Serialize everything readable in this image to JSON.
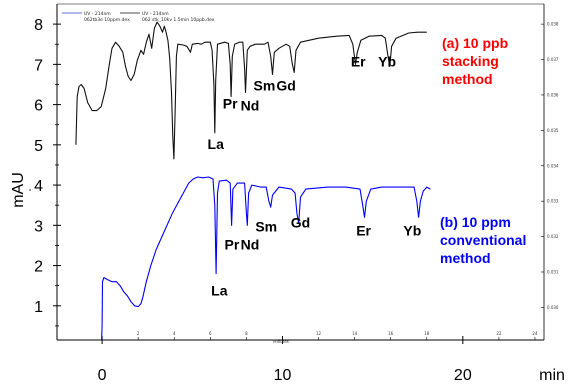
{
  "legend": {
    "entries": [
      {
        "label": "UV - 214nm",
        "file": "062tb3e 10ppm.dex",
        "color": "#2b3bd0"
      },
      {
        "label": "UV - 214nm",
        "file": "062 stk_10kv 1.5min 10ppb.dex",
        "color": "#111111"
      }
    ]
  },
  "annotations": {
    "a_lines": [
      "(a) 10 ppb",
      "stacking",
      "method"
    ],
    "a_color": "#ff0000",
    "b_lines": [
      "(b) 10 ppm",
      "conventional",
      "method"
    ],
    "b_color": "#0000ff"
  },
  "chart_data": {
    "type": "line",
    "xlabel": "min",
    "x_minor_label": "Minutes",
    "ylabel": "mAU",
    "xlim": [
      -2.5,
      24.5
    ],
    "ylim": [
      0.15,
      8.5
    ],
    "x_ticks": [
      0,
      10,
      20
    ],
    "y_ticks": [
      1,
      2,
      3,
      4,
      5,
      6,
      7,
      8
    ],
    "x_minor_ticks": [
      2,
      4,
      6,
      8,
      12,
      14,
      16,
      18,
      22,
      24
    ],
    "right_axis_ticks": [
      {
        "y": 8.0,
        "label": "0.038"
      },
      {
        "y": 7.12,
        "label": "0.037"
      },
      {
        "y": 6.24,
        "label": "0.036"
      },
      {
        "y": 5.36,
        "label": "0.035"
      },
      {
        "y": 4.48,
        "label": "0.034"
      },
      {
        "y": 3.6,
        "label": "0.033"
      },
      {
        "y": 2.72,
        "label": "0.032"
      },
      {
        "y": 1.84,
        "label": "0.031"
      },
      {
        "y": 0.96,
        "label": "0.030"
      }
    ],
    "peak_labels": [
      {
        "text": "La",
        "x": 6.3,
        "y": 4.9
      },
      {
        "text": "Pr",
        "x": 7.1,
        "y": 5.9
      },
      {
        "text": "Nd",
        "x": 8.2,
        "y": 5.85
      },
      {
        "text": "Sm",
        "x": 9.0,
        "y": 6.35
      },
      {
        "text": "Gd",
        "x": 10.2,
        "y": 6.35
      },
      {
        "text": "Er",
        "x": 14.2,
        "y": 6.95
      },
      {
        "text": "Yb",
        "x": 15.8,
        "y": 6.95
      },
      {
        "text": "La",
        "x": 6.5,
        "y": 1.25
      },
      {
        "text": "Pr",
        "x": 7.2,
        "y": 2.4
      },
      {
        "text": "Nd",
        "x": 8.2,
        "y": 2.4
      },
      {
        "text": "Sm",
        "x": 9.1,
        "y": 2.85
      },
      {
        "text": "Gd",
        "x": 11.0,
        "y": 2.95
      },
      {
        "text": "Er",
        "x": 14.5,
        "y": 2.75
      },
      {
        "text": "Yb",
        "x": 17.2,
        "y": 2.75
      }
    ],
    "series": [
      {
        "color": "#111111",
        "points": [
          [
            -1.45,
            5.0
          ],
          [
            -1.38,
            6.2
          ],
          [
            -1.28,
            6.45
          ],
          [
            -1.15,
            6.5
          ],
          [
            -1.0,
            6.4
          ],
          [
            -0.8,
            6.05
          ],
          [
            -0.55,
            5.85
          ],
          [
            -0.3,
            5.85
          ],
          [
            -0.05,
            5.95
          ],
          [
            0.2,
            6.4
          ],
          [
            0.4,
            7.0
          ],
          [
            0.55,
            7.4
          ],
          [
            0.75,
            7.55
          ],
          [
            0.95,
            7.45
          ],
          [
            1.15,
            7.3
          ],
          [
            1.3,
            6.95
          ],
          [
            1.45,
            6.7
          ],
          [
            1.6,
            6.6
          ],
          [
            1.78,
            6.75
          ],
          [
            1.95,
            7.1
          ],
          [
            2.15,
            7.35
          ],
          [
            2.3,
            7.25
          ],
          [
            2.45,
            7.55
          ],
          [
            2.6,
            7.75
          ],
          [
            2.75,
            7.4
          ],
          [
            2.9,
            7.9
          ],
          [
            3.05,
            8.05
          ],
          [
            3.2,
            7.95
          ],
          [
            3.35,
            7.8
          ],
          [
            3.45,
            7.95
          ],
          [
            3.55,
            7.8
          ],
          [
            3.65,
            7.6
          ],
          [
            3.75,
            7.15
          ],
          [
            3.85,
            6.3
          ],
          [
            3.92,
            5.2
          ],
          [
            3.98,
            4.65
          ],
          [
            4.05,
            5.8
          ],
          [
            4.12,
            7.2
          ],
          [
            4.2,
            7.5
          ],
          [
            4.5,
            7.48
          ],
          [
            4.7,
            7.45
          ],
          [
            4.9,
            7.3
          ],
          [
            5.0,
            7.5
          ],
          [
            5.3,
            7.52
          ],
          [
            5.5,
            7.5
          ],
          [
            5.7,
            7.55
          ],
          [
            6.0,
            7.55
          ],
          [
            6.1,
            7.35
          ],
          [
            6.2,
            6.5
          ],
          [
            6.25,
            5.3
          ],
          [
            6.3,
            6.6
          ],
          [
            6.4,
            7.5
          ],
          [
            6.8,
            7.55
          ],
          [
            7.0,
            7.52
          ],
          [
            7.1,
            7.0
          ],
          [
            7.15,
            6.2
          ],
          [
            7.22,
            7.2
          ],
          [
            7.35,
            7.5
          ],
          [
            7.6,
            7.55
          ],
          [
            7.8,
            7.55
          ],
          [
            7.9,
            6.9
          ],
          [
            7.95,
            6.3
          ],
          [
            8.05,
            7.35
          ],
          [
            8.2,
            7.45
          ],
          [
            8.5,
            7.5
          ],
          [
            9.0,
            7.5
          ],
          [
            9.2,
            7.55
          ],
          [
            9.35,
            7.2
          ],
          [
            9.45,
            6.75
          ],
          [
            9.55,
            7.3
          ],
          [
            9.8,
            7.4
          ],
          [
            10.2,
            7.5
          ],
          [
            10.4,
            7.45
          ],
          [
            10.55,
            7.0
          ],
          [
            10.65,
            6.8
          ],
          [
            10.75,
            7.35
          ],
          [
            11.0,
            7.55
          ],
          [
            12.0,
            7.65
          ],
          [
            13.0,
            7.7
          ],
          [
            13.7,
            7.72
          ],
          [
            13.9,
            7.5
          ],
          [
            14.05,
            7.0
          ],
          [
            14.15,
            7.3
          ],
          [
            14.35,
            7.6
          ],
          [
            14.8,
            7.7
          ],
          [
            15.5,
            7.72
          ],
          [
            15.7,
            7.65
          ],
          [
            15.85,
            7.2
          ],
          [
            15.95,
            6.95
          ],
          [
            16.05,
            7.45
          ],
          [
            16.3,
            7.65
          ],
          [
            17.0,
            7.78
          ],
          [
            17.5,
            7.8
          ],
          [
            18.0,
            7.8
          ]
        ]
      },
      {
        "color": "#0000ff",
        "points": [
          [
            -0.03,
            0.15
          ],
          [
            0.0,
            0.5
          ],
          [
            0.02,
            1.6
          ],
          [
            0.1,
            1.7
          ],
          [
            0.3,
            1.65
          ],
          [
            0.55,
            1.6
          ],
          [
            0.8,
            1.6
          ],
          [
            1.0,
            1.5
          ],
          [
            1.2,
            1.35
          ],
          [
            1.4,
            1.25
          ],
          [
            1.6,
            1.1
          ],
          [
            1.8,
            1.0
          ],
          [
            2.0,
            0.98
          ],
          [
            2.15,
            1.05
          ],
          [
            2.25,
            1.2
          ],
          [
            2.45,
            1.6
          ],
          [
            2.7,
            2.0
          ],
          [
            3.0,
            2.4
          ],
          [
            3.3,
            2.7
          ],
          [
            3.6,
            3.0
          ],
          [
            3.9,
            3.3
          ],
          [
            4.2,
            3.55
          ],
          [
            4.5,
            3.8
          ],
          [
            4.8,
            4.05
          ],
          [
            5.05,
            4.15
          ],
          [
            5.3,
            4.2
          ],
          [
            5.6,
            4.18
          ],
          [
            5.9,
            4.2
          ],
          [
            6.15,
            4.15
          ],
          [
            6.25,
            3.5
          ],
          [
            6.32,
            1.8
          ],
          [
            6.4,
            3.8
          ],
          [
            6.5,
            4.1
          ],
          [
            6.9,
            4.12
          ],
          [
            7.1,
            4.05
          ],
          [
            7.18,
            3.0
          ],
          [
            7.25,
            3.9
          ],
          [
            7.5,
            4.05
          ],
          [
            7.9,
            4.05
          ],
          [
            8.0,
            3.3
          ],
          [
            8.05,
            3.0
          ],
          [
            8.12,
            3.8
          ],
          [
            8.3,
            4.0
          ],
          [
            8.8,
            3.95
          ],
          [
            9.1,
            3.95
          ],
          [
            9.25,
            3.6
          ],
          [
            9.35,
            3.45
          ],
          [
            9.45,
            3.75
          ],
          [
            9.8,
            3.95
          ],
          [
            10.5,
            3.9
          ],
          [
            10.7,
            3.8
          ],
          [
            10.8,
            3.3
          ],
          [
            10.9,
            3.05
          ],
          [
            11.0,
            3.7
          ],
          [
            11.3,
            3.9
          ],
          [
            12.5,
            3.95
          ],
          [
            13.5,
            3.95
          ],
          [
            14.3,
            3.9
          ],
          [
            14.45,
            3.5
          ],
          [
            14.55,
            3.2
          ],
          [
            14.65,
            3.6
          ],
          [
            14.9,
            3.9
          ],
          [
            15.5,
            3.95
          ],
          [
            16.5,
            3.95
          ],
          [
            17.3,
            3.95
          ],
          [
            17.45,
            3.6
          ],
          [
            17.55,
            3.2
          ],
          [
            17.65,
            3.6
          ],
          [
            17.8,
            3.85
          ],
          [
            18.0,
            3.95
          ],
          [
            18.2,
            3.9
          ]
        ]
      }
    ]
  }
}
